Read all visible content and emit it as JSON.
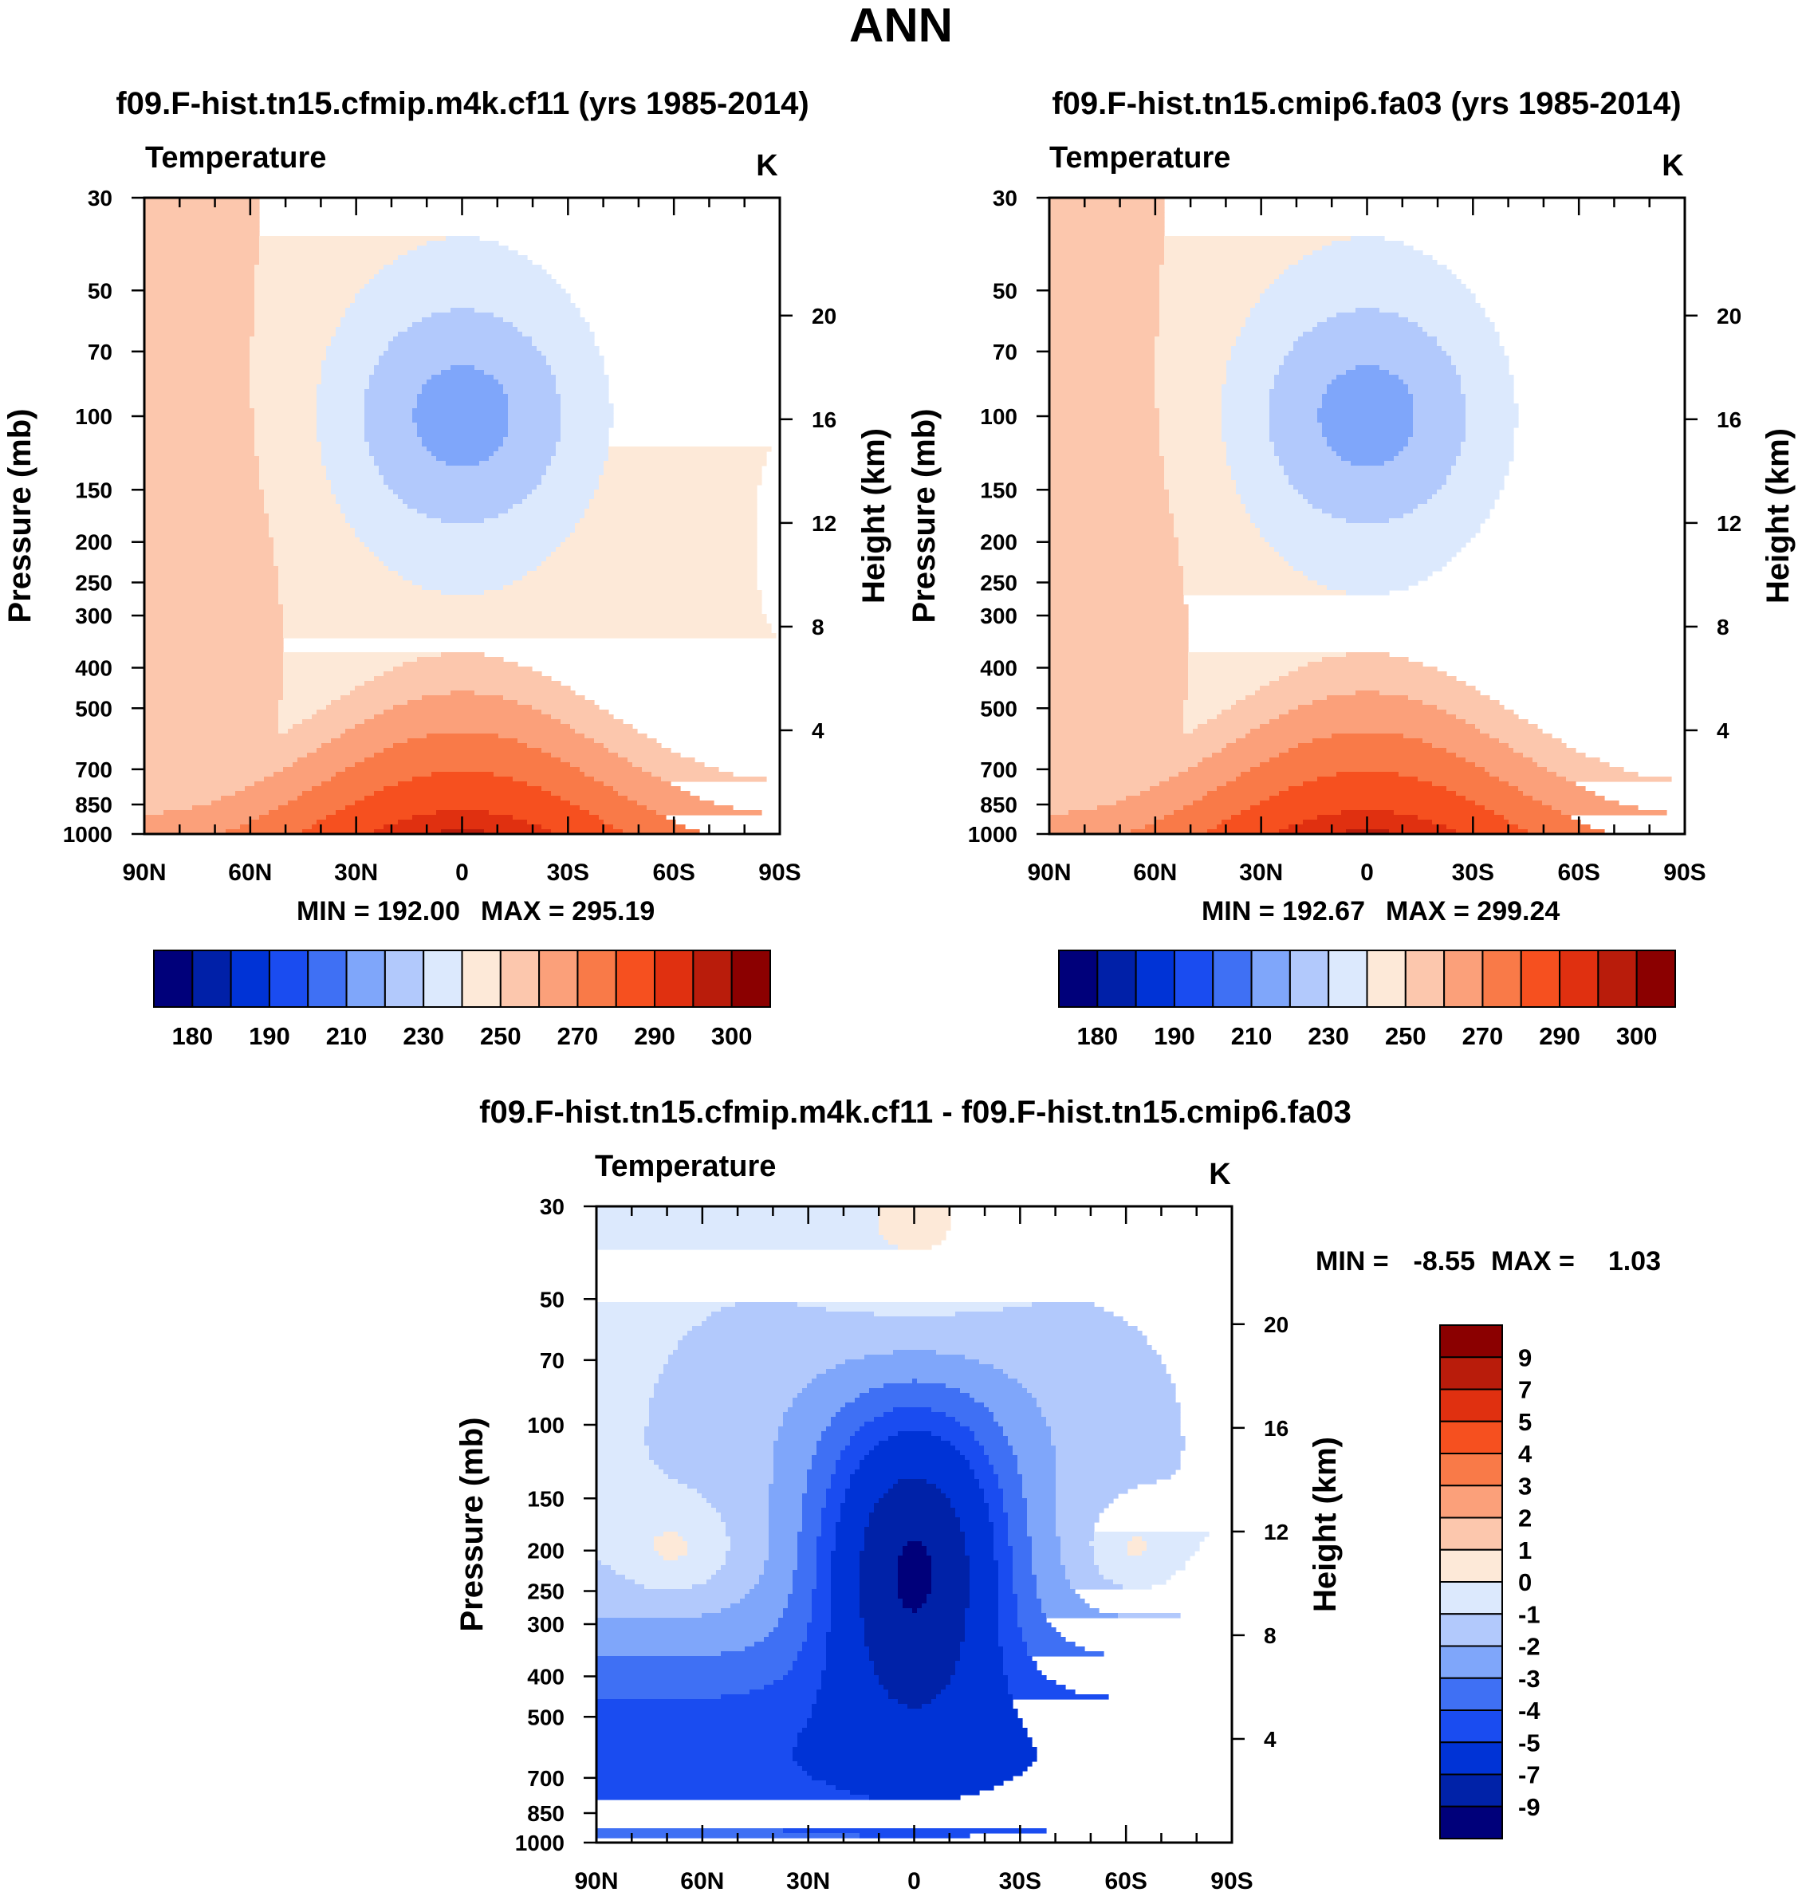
{
  "figure_title": "ANN",
  "colors": {
    "abs_scale": [
      "#00007a",
      "#0020a8",
      "#0033d6",
      "#1a4cf0",
      "#3f70f4",
      "#7fa6fa",
      "#b2c9fc",
      "#dce9fd",
      "#fde9d8",
      "#fcc7ad",
      "#fba07a",
      "#f97a48",
      "#f6501f",
      "#e03010",
      "#b91c0b",
      "#8b0000"
    ],
    "diff_scale": [
      "#00007a",
      "#0022a8",
      "#0033d6",
      "#1a4cf0",
      "#3f70f4",
      "#7fa6fa",
      "#b2c9fc",
      "#dce9fd",
      "#fde9d8",
      "#fcc7ad",
      "#fba07a",
      "#f97a48",
      "#f6501f",
      "#e03010",
      "#b91c0b",
      "#8b0000"
    ]
  },
  "chart_data": [
    {
      "type": "heatmap",
      "id": "panel_a",
      "title": "f09.F-hist.tn15.cfmip.m4k.cf11 (yrs 1985-2014)",
      "left_label": "Temperature",
      "unit": "K",
      "xlabel": "",
      "ylabel": "Pressure (mb)",
      "y2label": "Height (km)",
      "x_ticks": [
        "90N",
        "60N",
        "30N",
        "0",
        "30S",
        "60S",
        "90S"
      ],
      "x_range": [
        90,
        -90
      ],
      "y_ticks": [
        30,
        50,
        70,
        100,
        150,
        200,
        250,
        300,
        400,
        500,
        700,
        850,
        1000
      ],
      "y_range_mb": [
        30,
        1000
      ],
      "y2_ticks": [
        4,
        8,
        12,
        16,
        20
      ],
      "min_text": "MIN = 192.00",
      "max_text": "MAX = 295.19",
      "colorbar_labels": [
        "180",
        "190",
        "210",
        "230",
        "250",
        "270",
        "290",
        "300"
      ],
      "levels": [
        180,
        185,
        190,
        200,
        210,
        220,
        230,
        240,
        250,
        260,
        270,
        280,
        290,
        295,
        300
      ],
      "field_params": {
        "trop": 1.0,
        "polar": 0.0
      }
    },
    {
      "type": "heatmap",
      "id": "panel_b",
      "title": "f09.F-hist.tn15.cmip6.fa03 (yrs 1985-2014)",
      "left_label": "Temperature",
      "unit": "K",
      "xlabel": "",
      "ylabel": "Pressure (mb)",
      "y2label": "Height (km)",
      "x_ticks": [
        "90N",
        "60N",
        "30N",
        "0",
        "30S",
        "60S",
        "90S"
      ],
      "x_range": [
        90,
        -90
      ],
      "y_ticks": [
        30,
        50,
        70,
        100,
        150,
        200,
        250,
        300,
        400,
        500,
        700,
        850,
        1000
      ],
      "y_range_mb": [
        30,
        1000
      ],
      "y2_ticks": [
        4,
        8,
        12,
        16,
        20
      ],
      "min_text": "MIN = 192.67",
      "max_text": "MAX = 299.24",
      "colorbar_labels": [
        "180",
        "190",
        "210",
        "230",
        "250",
        "270",
        "290",
        "300"
      ],
      "levels": [
        180,
        185,
        190,
        200,
        210,
        220,
        230,
        240,
        250,
        260,
        270,
        280,
        290,
        295,
        300
      ],
      "field_params": {
        "trop": 1.0,
        "polar": 0.3
      }
    },
    {
      "type": "heatmap",
      "id": "panel_diff",
      "title": "f09.F-hist.tn15.cfmip.m4k.cf11 - f09.F-hist.tn15.cmip6.fa03",
      "left_label": "Temperature",
      "unit": "K",
      "xlabel": "",
      "ylabel": "Pressure (mb)",
      "y2label": "Height (km)",
      "x_ticks": [
        "90N",
        "60N",
        "30N",
        "0",
        "30S",
        "60S",
        "90S"
      ],
      "x_range": [
        90,
        -90
      ],
      "y_ticks": [
        30,
        50,
        70,
        100,
        150,
        200,
        250,
        300,
        400,
        500,
        700,
        850,
        1000
      ],
      "y_range_mb": [
        30,
        1000
      ],
      "y2_ticks": [
        4,
        8,
        12,
        16,
        20
      ],
      "min_label": "MIN =",
      "min_value": "-8.55",
      "max_label": "MAX =",
      "max_value": "1.03",
      "colorbar_labels": [
        "9",
        "7",
        "5",
        "4",
        "3",
        "2",
        "1",
        "0",
        "-1",
        "-2",
        "-3",
        "-4",
        "-5",
        "-7",
        "-9"
      ],
      "levels": [
        -9,
        -7,
        -5,
        -4,
        -3,
        -2,
        -1,
        0,
        1,
        2,
        3,
        4,
        5,
        7,
        9
      ]
    }
  ]
}
